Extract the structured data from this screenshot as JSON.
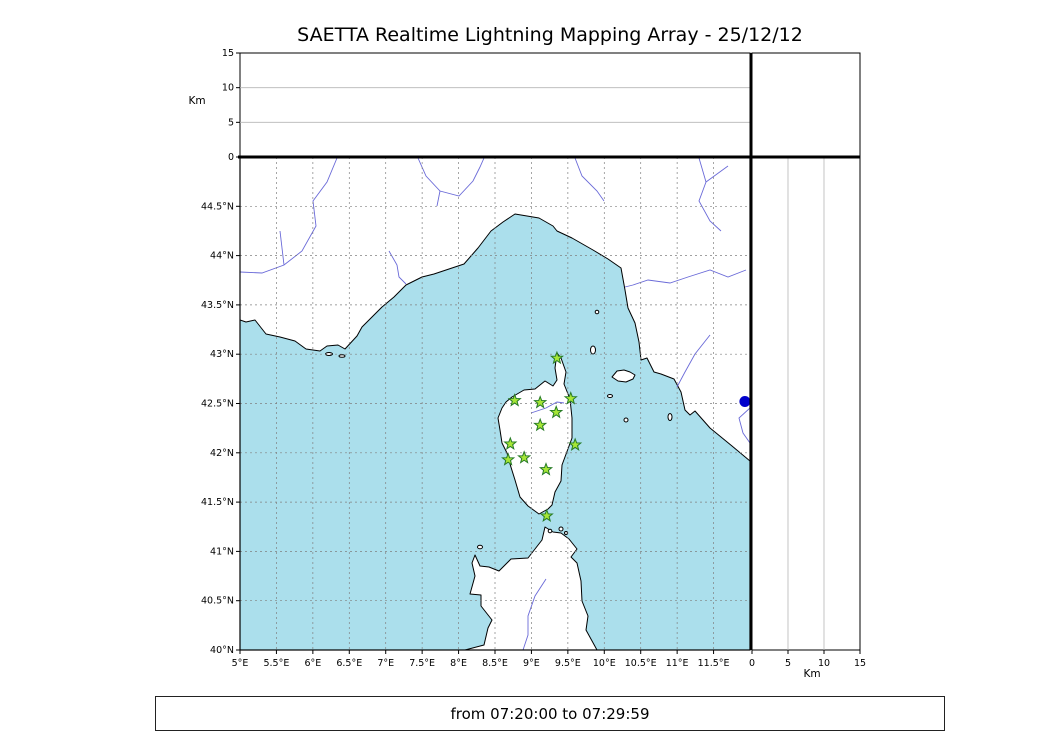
{
  "chart_data": {
    "type": "scatter",
    "title": "SAETTA Realtime Lightning Mapping Array - 25/12/12",
    "subtitle": "from 07:20:00 to 07:29:59",
    "panels": [
      "altitude-vs-longitude",
      "plan-view-map",
      "altitude-vs-latitude"
    ],
    "stations_lonlat": [
      [
        9.35,
        42.96
      ],
      [
        8.77,
        42.53
      ],
      [
        9.12,
        42.51
      ],
      [
        9.34,
        42.41
      ],
      [
        9.54,
        42.55
      ],
      [
        9.12,
        42.28
      ],
      [
        8.71,
        42.09
      ],
      [
        9.6,
        42.08
      ],
      [
        8.68,
        41.93
      ],
      [
        8.9,
        41.95
      ],
      [
        9.2,
        41.83
      ],
      [
        9.21,
        41.36
      ]
    ],
    "event_points": [
      {
        "lon": 11.93,
        "lat": 42.52,
        "color": "#0000cc"
      }
    ]
  },
  "axes": {
    "lon_range": [
      5.0,
      12.0
    ],
    "lat_range": [
      40.0,
      45.0
    ],
    "alt_range": [
      0,
      15
    ],
    "alt_label": "Km",
    "lon_ticks": [
      {
        "lon": 5.0,
        "label": "5°E"
      },
      {
        "lon": 5.5,
        "label": "5.5°E"
      },
      {
        "lon": 6.0,
        "label": "6°E"
      },
      {
        "lon": 6.5,
        "label": "6.5°E"
      },
      {
        "lon": 7.0,
        "label": "7°E"
      },
      {
        "lon": 7.5,
        "label": "7.5°E"
      },
      {
        "lon": 8.0,
        "label": "8°E"
      },
      {
        "lon": 8.5,
        "label": "8.5°E"
      },
      {
        "lon": 9.0,
        "label": "9°E"
      },
      {
        "lon": 9.5,
        "label": "9.5°E"
      },
      {
        "lon": 10.0,
        "label": "10°E"
      },
      {
        "lon": 10.5,
        "label": "10.5°E"
      },
      {
        "lon": 11.0,
        "label": "11°E"
      },
      {
        "lon": 11.5,
        "label": "11.5°E"
      }
    ],
    "lat_ticks": [
      {
        "lat": 40.0,
        "label": "40°N"
      },
      {
        "lat": 40.5,
        "label": "40.5°N"
      },
      {
        "lat": 41.0,
        "label": "41°N"
      },
      {
        "lat": 41.5,
        "label": "41.5°N"
      },
      {
        "lat": 42.0,
        "label": "42°N"
      },
      {
        "lat": 42.5,
        "label": "42.5°N"
      },
      {
        "lat": 43.0,
        "label": "43°N"
      },
      {
        "lat": 43.5,
        "label": "43.5°N"
      },
      {
        "lat": 44.0,
        "label": "44°N"
      },
      {
        "lat": 44.5,
        "label": "44.5°N"
      }
    ],
    "alt_ticks": [
      {
        "km": 0,
        "label": "0"
      },
      {
        "km": 5,
        "label": "5"
      },
      {
        "km": 10,
        "label": "10"
      },
      {
        "km": 15,
        "label": "15"
      }
    ]
  },
  "colors": {
    "sea": "#abdfec",
    "land": "#ffffff",
    "river": "#6a6ad8",
    "grid": "#808080",
    "station_fill": "#a6e636",
    "station_edge": "#267a26",
    "event_dot": "#0000cc"
  }
}
